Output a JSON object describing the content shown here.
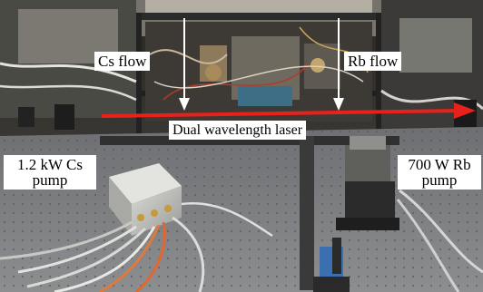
{
  "labels": {
    "cs_flow": "Cs flow",
    "rb_flow": "Rb flow",
    "laser": "Dual wavelength laser",
    "cs_pump": [
      "1.2 kW Cs",
      "pump"
    ],
    "rb_pump": [
      "700 W Rb",
      "pump"
    ]
  },
  "colors": {
    "laser_arrow": "#e8211b",
    "flow_arrow": "#ffffff",
    "label_bg": "#ffffff"
  }
}
